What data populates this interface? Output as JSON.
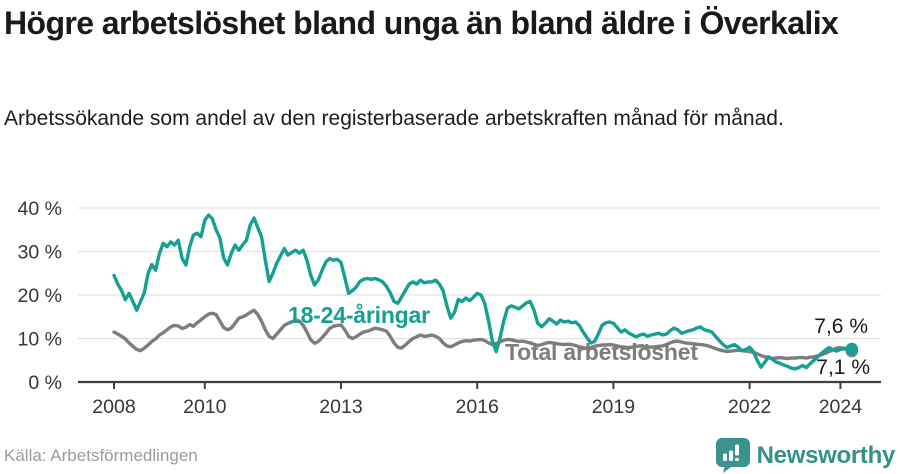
{
  "header": {
    "title": "Högre arbetslöshet bland unga än bland äldre i Överkalix",
    "subtitle": "Arbetssökande som andel av den registerbaserade arbetskraften månad för månad."
  },
  "chart_data": {
    "type": "line",
    "title": "Högre arbetslöshet bland unga än bland äldre i Överkalix",
    "x_unit": "month",
    "x_start": "2008-01",
    "x_end": "2024-04",
    "x_tick_years": [
      2008,
      2010,
      2013,
      2016,
      2019,
      2022,
      2024
    ],
    "y_tick_values": [
      40,
      30,
      20,
      10,
      0
    ],
    "y_tick_labels": [
      "40 %",
      "30 %",
      "20 %",
      "10 %",
      "0 %"
    ],
    "ylim": [
      0,
      42
    ],
    "grid": "horizontal",
    "legend_position": "inline-labels",
    "series": [
      {
        "name": "18-24-åringar",
        "color": "#15a093",
        "end_label": "7,6 %",
        "end_value": 7.6,
        "values": [
          24.5,
          22.5,
          21.0,
          18.9,
          20.4,
          18.5,
          16.5,
          18.5,
          20.5,
          25.0,
          27.0,
          25.7,
          29.5,
          31.9,
          31.1,
          32.2,
          31.5,
          32.6,
          28.4,
          26.9,
          31.1,
          33.8,
          34.2,
          33.4,
          37.2,
          38.4,
          37.5,
          35.0,
          33.1,
          28.5,
          26.9,
          29.6,
          31.5,
          30.3,
          31.5,
          32.6,
          36.1,
          37.7,
          35.5,
          33.4,
          28.0,
          23.1,
          25.0,
          27.3,
          29.0,
          30.7,
          29.2,
          29.8,
          30.3,
          29.6,
          30.3,
          28.0,
          24.6,
          22.3,
          23.5,
          25.7,
          27.6,
          28.4,
          28.0,
          28.2,
          27.5,
          24.0,
          20.4,
          21.0,
          21.8,
          23.1,
          23.6,
          23.8,
          23.6,
          23.8,
          23.5,
          23.0,
          22.0,
          20.5,
          18.5,
          18.1,
          19.5,
          21.0,
          22.5,
          23.0,
          22.5,
          23.4,
          22.8,
          23.0,
          23.0,
          23.4,
          22.5,
          21.0,
          17.5,
          14.7,
          16.0,
          19.0,
          18.5,
          19.3,
          18.7,
          19.5,
          20.4,
          20.0,
          18.0,
          14.0,
          9.5,
          7.0,
          10.0,
          14.0,
          17.0,
          17.5,
          17.2,
          16.8,
          17.5,
          18.2,
          18.5,
          16.5,
          13.5,
          12.7,
          13.5,
          14.5,
          14.0,
          13.3,
          14.2,
          13.8,
          14.0,
          13.6,
          13.8,
          13.0,
          11.5,
          10.2,
          9.0,
          9.3,
          11.0,
          13.0,
          13.6,
          13.8,
          13.5,
          12.5,
          11.5,
          12.0,
          11.3,
          10.8,
          10.4,
          10.8,
          11.0,
          10.5,
          10.8,
          11.0,
          11.2,
          10.8,
          11.0,
          11.8,
          12.4,
          12.0,
          11.2,
          11.5,
          11.8,
          12.0,
          12.4,
          12.7,
          12.0,
          11.8,
          11.5,
          10.5,
          9.5,
          8.6,
          7.9,
          8.3,
          8.6,
          8.0,
          7.2,
          7.5,
          8.0,
          7.0,
          5.0,
          3.4,
          4.5,
          5.8,
          5.2,
          4.6,
          4.3,
          3.9,
          3.6,
          3.2,
          3.0,
          3.3,
          3.8,
          3.3,
          4.2,
          5.0,
          5.8,
          6.6,
          7.3,
          7.9,
          7.4,
          7.1,
          7.5,
          7.8,
          7.4,
          7.6
        ]
      },
      {
        "name": "Total arbetslöshet",
        "color": "#7d7d7d",
        "end_label": "7,1 %",
        "end_value": 7.1,
        "values": [
          11.5,
          11.0,
          10.5,
          9.9,
          9.0,
          8.2,
          7.5,
          7.2,
          7.8,
          8.5,
          9.3,
          9.9,
          10.8,
          11.3,
          12.0,
          12.7,
          13.0,
          12.9,
          12.3,
          12.6,
          13.2,
          12.8,
          13.6,
          14.3,
          15.0,
          15.6,
          15.8,
          15.5,
          14.0,
          12.5,
          12.0,
          12.4,
          13.5,
          14.7,
          15.0,
          15.4,
          16.0,
          16.5,
          15.5,
          14.0,
          12.0,
          10.5,
          10.0,
          11.0,
          12.0,
          13.0,
          13.5,
          13.8,
          14.3,
          14.0,
          13.0,
          11.5,
          9.7,
          8.9,
          9.3,
          10.2,
          11.2,
          12.3,
          12.8,
          13.0,
          13.1,
          12.0,
          10.5,
          10.0,
          10.4,
          11.0,
          11.5,
          11.7,
          12.0,
          12.4,
          12.2,
          12.0,
          11.7,
          10.5,
          9.0,
          8.0,
          7.8,
          8.5,
          9.3,
          10.0,
          10.4,
          10.8,
          10.5,
          10.6,
          10.8,
          10.5,
          10.0,
          9.0,
          8.3,
          8.1,
          8.5,
          9.0,
          9.3,
          9.5,
          9.4,
          9.6,
          9.7,
          9.8,
          9.5,
          9.0,
          8.6,
          8.8,
          9.2,
          9.6,
          9.8,
          9.7,
          9.5,
          9.3,
          9.4,
          9.2,
          9.0,
          8.7,
          8.4,
          8.6,
          8.9,
          9.1,
          9.0,
          8.8,
          8.7,
          8.6,
          8.7,
          8.6,
          8.4,
          8.1,
          7.9,
          7.7,
          7.9,
          8.2,
          8.4,
          8.5,
          8.5,
          8.6,
          8.5,
          8.3,
          8.1,
          8.0,
          7.9,
          8.0,
          8.2,
          8.3,
          8.2,
          8.1,
          8.0,
          8.1,
          8.2,
          8.3,
          8.6,
          9.0,
          9.3,
          9.4,
          9.2,
          9.0,
          8.9,
          8.8,
          8.7,
          8.6,
          8.5,
          8.3,
          8.0,
          7.7,
          7.4,
          7.2,
          7.0,
          7.1,
          7.2,
          7.3,
          7.2,
          7.1,
          7.0,
          6.8,
          6.5,
          6.1,
          5.8,
          5.6,
          5.4,
          5.5,
          5.6,
          5.5,
          5.4,
          5.5,
          5.5,
          5.6,
          5.6,
          5.5,
          5.7,
          5.8,
          6.0,
          6.3,
          6.6,
          7.0,
          7.4,
          7.8,
          7.9,
          7.6,
          7.3,
          7.1
        ]
      }
    ]
  },
  "annotations": {
    "young_label": "18-24-åringar",
    "total_label": "Total arbetslöshet",
    "young_end_label": "7,6 %",
    "total_end_label": "7,1 %"
  },
  "footer": {
    "source": "Källa: Arbetsförmedlingen",
    "brand": "Newsworthy"
  },
  "colors": {
    "young_line": "#15a093",
    "total_line": "#7d7d7d",
    "axis": "#3f3f3f",
    "grid": "#e3e3e3",
    "tick_label": "#363636",
    "source_text": "#9b9b9b",
    "brand_teal": "#3a938e",
    "background": "#ffffff"
  }
}
